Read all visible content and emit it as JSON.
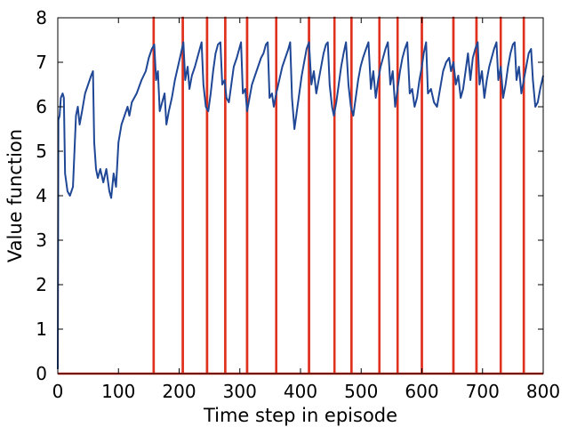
{
  "chart_data": {
    "type": "line",
    "title": "",
    "xlabel": "Time step in episode",
    "ylabel": "Value function",
    "xlim": [
      0,
      800
    ],
    "ylim": [
      0,
      8
    ],
    "xticks": [
      0,
      100,
      200,
      300,
      400,
      500,
      600,
      700,
      800
    ],
    "yticks": [
      0,
      1,
      2,
      3,
      4,
      5,
      6,
      7,
      8
    ],
    "grid": false,
    "legend": "none",
    "colors": {
      "value": "#1f4796",
      "events": "#e0301e"
    },
    "series": [
      {
        "values": [
          [
            0,
            0.1
          ],
          [
            1,
            5.7
          ],
          [
            3,
            5.8
          ],
          [
            5,
            6.2
          ],
          [
            8,
            6.3
          ],
          [
            10,
            6.2
          ],
          [
            12,
            4.5
          ],
          [
            16,
            4.1
          ],
          [
            20,
            4.0
          ],
          [
            25,
            4.2
          ],
          [
            30,
            5.8
          ],
          [
            33,
            6.0
          ],
          [
            36,
            5.6
          ],
          [
            40,
            5.9
          ],
          [
            45,
            6.3
          ],
          [
            50,
            6.5
          ],
          [
            55,
            6.7
          ],
          [
            58,
            6.8
          ],
          [
            60,
            5.2
          ],
          [
            63,
            4.6
          ],
          [
            66,
            4.4
          ],
          [
            70,
            4.6
          ],
          [
            75,
            4.3
          ],
          [
            80,
            4.6
          ],
          [
            85,
            4.1
          ],
          [
            88,
            3.95
          ],
          [
            92,
            4.5
          ],
          [
            96,
            4.2
          ],
          [
            100,
            5.2
          ],
          [
            105,
            5.6
          ],
          [
            110,
            5.8
          ],
          [
            115,
            6.0
          ],
          [
            118,
            5.8
          ],
          [
            122,
            6.1
          ],
          [
            130,
            6.3
          ],
          [
            138,
            6.6
          ],
          [
            145,
            6.8
          ],
          [
            150,
            7.1
          ],
          [
            155,
            7.3
          ],
          [
            159,
            7.4
          ],
          [
            162,
            6.6
          ],
          [
            165,
            6.8
          ],
          [
            168,
            5.9
          ],
          [
            172,
            6.1
          ],
          [
            176,
            6.3
          ],
          [
            179,
            5.6
          ],
          [
            183,
            5.9
          ],
          [
            188,
            6.2
          ],
          [
            193,
            6.6
          ],
          [
            198,
            6.9
          ],
          [
            203,
            7.2
          ],
          [
            207,
            7.45
          ],
          [
            210,
            6.6
          ],
          [
            214,
            6.9
          ],
          [
            217,
            6.4
          ],
          [
            221,
            6.7
          ],
          [
            226,
            6.9
          ],
          [
            230,
            7.1
          ],
          [
            234,
            7.3
          ],
          [
            237,
            7.45
          ],
          [
            240,
            6.5
          ],
          [
            244,
            6.0
          ],
          [
            248,
            5.9
          ],
          [
            252,
            6.3
          ],
          [
            256,
            6.8
          ],
          [
            260,
            7.2
          ],
          [
            264,
            7.4
          ],
          [
            268,
            7.45
          ],
          [
            271,
            6.5
          ],
          [
            275,
            6.6
          ],
          [
            278,
            6.2
          ],
          [
            282,
            6.1
          ],
          [
            286,
            6.5
          ],
          [
            290,
            6.9
          ],
          [
            295,
            7.1
          ],
          [
            299,
            7.3
          ],
          [
            302,
            7.45
          ],
          [
            305,
            6.3
          ],
          [
            309,
            6.4
          ],
          [
            312,
            5.9
          ],
          [
            316,
            6.2
          ],
          [
            320,
            6.5
          ],
          [
            325,
            6.7
          ],
          [
            330,
            6.9
          ],
          [
            335,
            7.1
          ],
          [
            339,
            7.2
          ],
          [
            343,
            7.4
          ],
          [
            346,
            7.45
          ],
          [
            349,
            6.2
          ],
          [
            353,
            6.3
          ],
          [
            356,
            6.0
          ],
          [
            360,
            6.3
          ],
          [
            365,
            6.6
          ],
          [
            370,
            6.9
          ],
          [
            375,
            7.1
          ],
          [
            380,
            7.3
          ],
          [
            383,
            7.45
          ],
          [
            386,
            6.2
          ],
          [
            390,
            5.5
          ],
          [
            394,
            5.9
          ],
          [
            398,
            6.3
          ],
          [
            402,
            6.7
          ],
          [
            406,
            7.0
          ],
          [
            410,
            7.3
          ],
          [
            414,
            7.45
          ],
          [
            418,
            6.5
          ],
          [
            422,
            6.8
          ],
          [
            426,
            6.3
          ],
          [
            430,
            6.6
          ],
          [
            434,
            6.9
          ],
          [
            438,
            7.2
          ],
          [
            442,
            7.4
          ],
          [
            445,
            7.45
          ],
          [
            448,
            6.5
          ],
          [
            452,
            6.0
          ],
          [
            455,
            5.8
          ],
          [
            459,
            6.1
          ],
          [
            463,
            6.5
          ],
          [
            467,
            6.9
          ],
          [
            471,
            7.2
          ],
          [
            475,
            7.45
          ],
          [
            479,
            6.5
          ],
          [
            483,
            6.0
          ],
          [
            487,
            5.8
          ],
          [
            491,
            6.2
          ],
          [
            495,
            6.6
          ],
          [
            499,
            6.9
          ],
          [
            503,
            7.1
          ],
          [
            508,
            7.3
          ],
          [
            512,
            7.45
          ],
          [
            516,
            6.4
          ],
          [
            520,
            6.8
          ],
          [
            524,
            6.2
          ],
          [
            528,
            6.6
          ],
          [
            532,
            6.9
          ],
          [
            536,
            7.1
          ],
          [
            540,
            7.3
          ],
          [
            544,
            7.45
          ],
          [
            548,
            6.5
          ],
          [
            552,
            6.8
          ],
          [
            556,
            6.0
          ],
          [
            560,
            6.4
          ],
          [
            564,
            6.8
          ],
          [
            568,
            7.1
          ],
          [
            572,
            7.3
          ],
          [
            576,
            7.45
          ],
          [
            580,
            6.3
          ],
          [
            584,
            6.4
          ],
          [
            588,
            6.0
          ],
          [
            592,
            6.2
          ],
          [
            596,
            6.6
          ],
          [
            600,
            6.9
          ],
          [
            603,
            7.2
          ],
          [
            607,
            7.45
          ],
          [
            610,
            6.3
          ],
          [
            615,
            6.4
          ],
          [
            620,
            6.1
          ],
          [
            625,
            6.0
          ],
          [
            630,
            6.4
          ],
          [
            635,
            6.8
          ],
          [
            640,
            7.0
          ],
          [
            645,
            7.1
          ],
          [
            648,
            6.8
          ],
          [
            652,
            7.0
          ],
          [
            656,
            6.5
          ],
          [
            660,
            6.7
          ],
          [
            664,
            6.2
          ],
          [
            668,
            6.4
          ],
          [
            672,
            6.8
          ],
          [
            676,
            7.2
          ],
          [
            680,
            6.6
          ],
          [
            684,
            7.1
          ],
          [
            688,
            7.3
          ],
          [
            692,
            7.45
          ],
          [
            695,
            6.5
          ],
          [
            699,
            6.8
          ],
          [
            703,
            6.2
          ],
          [
            707,
            6.6
          ],
          [
            711,
            6.9
          ],
          [
            715,
            7.1
          ],
          [
            719,
            7.3
          ],
          [
            723,
            7.45
          ],
          [
            726,
            6.6
          ],
          [
            730,
            6.9
          ],
          [
            734,
            6.2
          ],
          [
            738,
            6.5
          ],
          [
            742,
            6.9
          ],
          [
            746,
            7.2
          ],
          [
            750,
            7.4
          ],
          [
            753,
            7.45
          ],
          [
            756,
            6.6
          ],
          [
            760,
            6.9
          ],
          [
            764,
            6.3
          ],
          [
            768,
            6.6
          ],
          [
            772,
            6.9
          ],
          [
            776,
            7.2
          ],
          [
            780,
            7.3
          ],
          [
            783,
            6.6
          ],
          [
            787,
            6.0
          ],
          [
            791,
            6.1
          ],
          [
            795,
            6.4
          ],
          [
            800,
            6.7
          ]
        ]
      }
    ],
    "event_lines": [
      158,
      206,
      246,
      276,
      312,
      360,
      414,
      456,
      484,
      530,
      560,
      600,
      652,
      690,
      730,
      768
    ],
    "tick_labels_x": [
      "0",
      "100",
      "200",
      "300",
      "400",
      "500",
      "600",
      "700",
      "800"
    ],
    "tick_labels_y": [
      "0",
      "1",
      "2",
      "3",
      "4",
      "5",
      "6",
      "7",
      "8"
    ]
  }
}
